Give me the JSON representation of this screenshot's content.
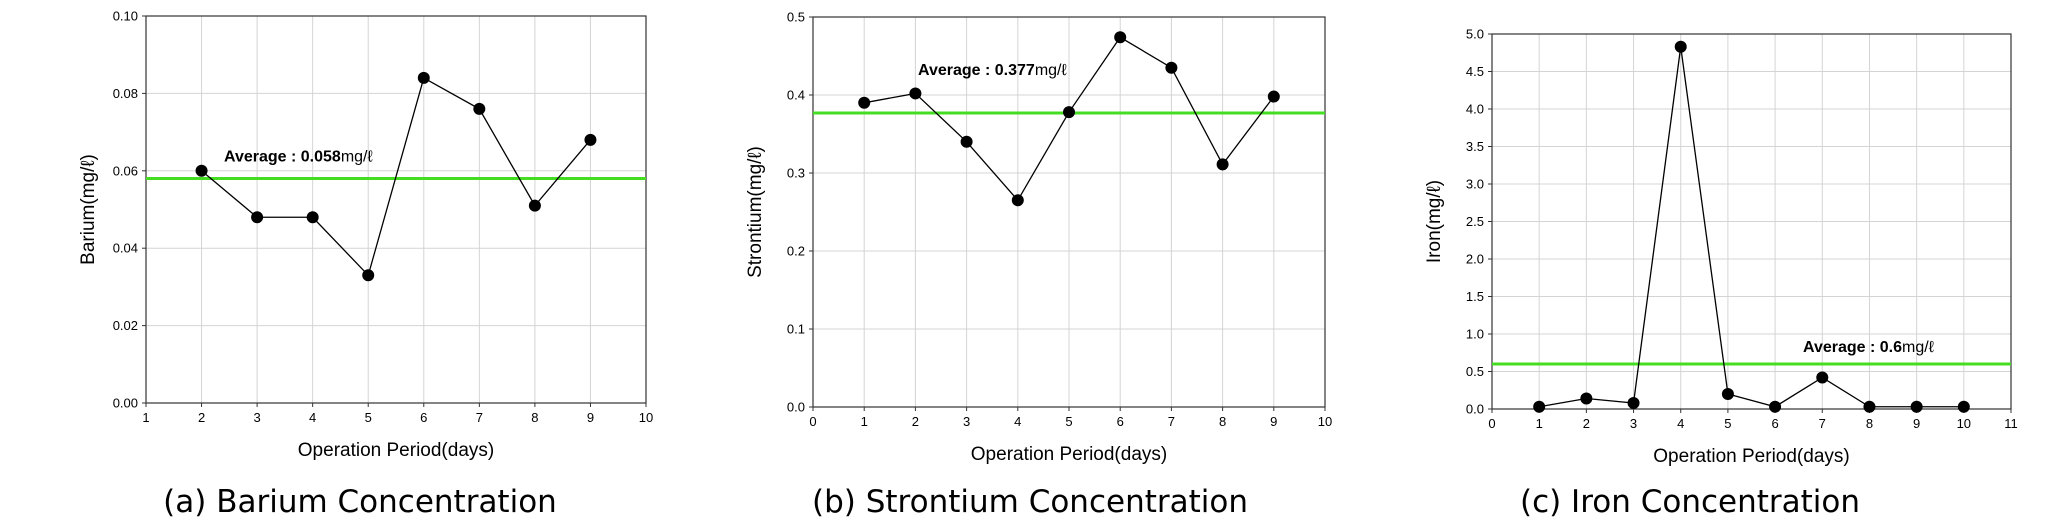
{
  "chart_data": [
    {
      "type": "line",
      "caption": "(a) Barium Concentration",
      "xlabel": "Operation Period(days)",
      "ylabel": "Barium(mg/ℓ)",
      "xlim": [
        1,
        10
      ],
      "ylim": [
        0,
        0.1
      ],
      "x_ticks": [
        "1",
        "2",
        "3",
        "4",
        "5",
        "6",
        "7",
        "8",
        "9",
        "10"
      ],
      "y_ticks": [
        "0.00",
        "0.02",
        "0.04",
        "0.06",
        "0.08",
        "0.10"
      ],
      "y_tick_values": [
        0,
        0.02,
        0.04,
        0.06,
        0.08,
        0.1
      ],
      "x_tick_values": [
        1,
        2,
        3,
        4,
        5,
        6,
        7,
        8,
        9,
        10
      ],
      "grid": true,
      "series": [
        {
          "x": [
            2,
            3,
            4,
            5,
            6,
            7,
            8,
            9
          ],
          "values": [
            0.06,
            0.048,
            0.048,
            0.033,
            0.084,
            0.076,
            0.051,
            0.068
          ]
        }
      ],
      "average": {
        "value": 0.058,
        "label_prefix": "Average : ",
        "label_value": "0.058",
        "label_unit": "mg/ℓ",
        "color": "#44dd22"
      }
    },
    {
      "type": "line",
      "caption": "(b) Strontium Concentration",
      "xlabel": "Operation Period(days)",
      "ylabel": "Strontium(mg/ℓ)",
      "xlim": [
        0,
        10
      ],
      "ylim": [
        0,
        0.5
      ],
      "x_ticks": [
        "0",
        "1",
        "2",
        "3",
        "4",
        "5",
        "6",
        "7",
        "8",
        "9",
        "10"
      ],
      "x_tick_values": [
        0,
        1,
        2,
        3,
        4,
        5,
        6,
        7,
        8,
        9,
        10
      ],
      "y_ticks": [
        "0.0",
        "0.1",
        "0.2",
        "0.3",
        "0.4",
        "0.5"
      ],
      "y_tick_values": [
        0,
        0.1,
        0.2,
        0.3,
        0.4,
        0.5
      ],
      "grid": true,
      "series": [
        {
          "x": [
            1,
            2,
            3,
            4,
            5,
            6,
            7,
            8,
            9
          ],
          "values": [
            0.39,
            0.402,
            0.34,
            0.265,
            0.378,
            0.474,
            0.435,
            0.311,
            0.398
          ]
        }
      ],
      "average": {
        "value": 0.377,
        "label_prefix": "Average : ",
        "label_value": "0.377",
        "label_unit": "mg/ℓ",
        "color": "#44dd22"
      }
    },
    {
      "type": "line",
      "caption": "(c) Iron Concentration",
      "xlabel": "Operation Period(days)",
      "ylabel": "Iron(mg/ℓ)",
      "xlim": [
        0,
        11
      ],
      "ylim": [
        0,
        5.0
      ],
      "x_ticks": [
        "0",
        "1",
        "2",
        "3",
        "4",
        "5",
        "6",
        "7",
        "8",
        "9",
        "10",
        "11"
      ],
      "x_tick_values": [
        0,
        1,
        2,
        3,
        4,
        5,
        6,
        7,
        8,
        9,
        10,
        11
      ],
      "y_ticks": [
        "0.0",
        "0.5",
        "1.0",
        "1.5",
        "2.0",
        "2.5",
        "3.0",
        "3.5",
        "4.0",
        "4.5",
        "5.0"
      ],
      "y_tick_values": [
        0,
        0.5,
        1.0,
        1.5,
        2.0,
        2.5,
        3.0,
        3.5,
        4.0,
        4.5,
        5.0
      ],
      "grid": true,
      "series": [
        {
          "x": [
            1,
            2,
            3,
            4,
            5,
            6,
            7,
            8,
            9,
            10
          ],
          "values": [
            0.03,
            0.14,
            0.08,
            4.83,
            0.2,
            0.03,
            0.42,
            0.03,
            0.03,
            0.03
          ]
        }
      ],
      "average": {
        "value": 0.6,
        "label_prefix": "Average : ",
        "label_value": "0.6",
        "label_unit": "mg/ℓ",
        "color": "#44dd22"
      }
    }
  ]
}
